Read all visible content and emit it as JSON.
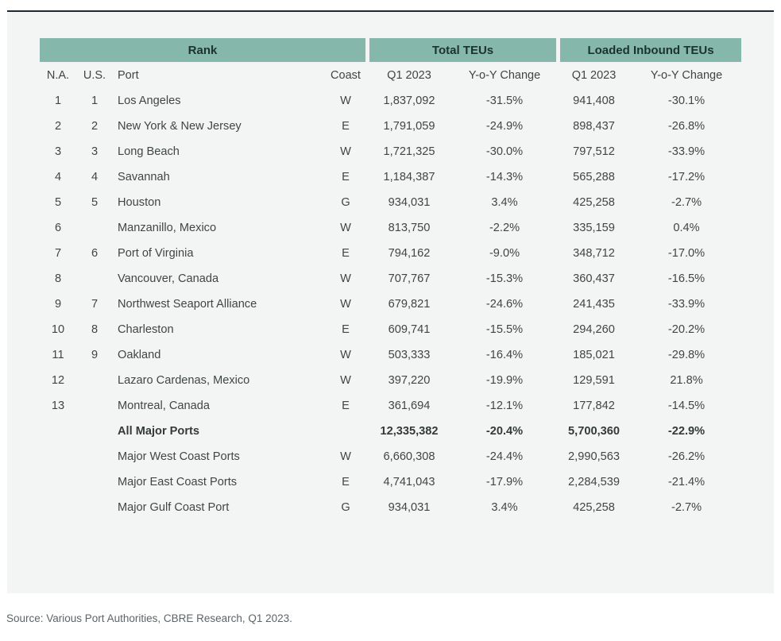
{
  "page": {
    "source_note": "Source: Various Port Authorities, CBRE Research, Q1 2023."
  },
  "colors": {
    "band_background": "#85b8ab",
    "band_text": "#1c332d",
    "top_rule": "#1e2a33",
    "panel_background": "#f3f5f5",
    "body_text": "#3f4643",
    "source_text": "#5c6468"
  },
  "table": {
    "group_headers": [
      {
        "label": "Rank"
      },
      {
        "label": "Total TEUs"
      },
      {
        "label": "Loaded Inbound TEUs"
      }
    ],
    "column_headers": [
      "N.A.",
      "U.S.",
      "Port",
      "Coast",
      "Q1 2023",
      "Y-o-Y Change",
      "Q1 2023",
      "Y-o-Y Change"
    ],
    "rows": [
      {
        "na": "1",
        "us": "1",
        "port": "Los Angeles",
        "coast": "W",
        "q1_total": "1,837,092",
        "yoy_total": "-31.5%",
        "q1_inbound": "941,408",
        "yoy_inbound": "-30.1%",
        "bold": false
      },
      {
        "na": "2",
        "us": "2",
        "port": "New York & New Jersey",
        "coast": "E",
        "q1_total": "1,791,059",
        "yoy_total": "-24.9%",
        "q1_inbound": "898,437",
        "yoy_inbound": "-26.8%",
        "bold": false
      },
      {
        "na": "3",
        "us": "3",
        "port": "Long Beach",
        "coast": "W",
        "q1_total": "1,721,325",
        "yoy_total": "-30.0%",
        "q1_inbound": "797,512",
        "yoy_inbound": "-33.9%",
        "bold": false
      },
      {
        "na": "4",
        "us": "4",
        "port": "Savannah",
        "coast": "E",
        "q1_total": "1,184,387",
        "yoy_total": "-14.3%",
        "q1_inbound": "565,288",
        "yoy_inbound": "-17.2%",
        "bold": false
      },
      {
        "na": "5",
        "us": "5",
        "port": "Houston",
        "coast": "G",
        "q1_total": "934,031",
        "yoy_total": "3.4%",
        "q1_inbound": "425,258",
        "yoy_inbound": "-2.7%",
        "bold": false
      },
      {
        "na": "6",
        "us": "",
        "port": "Manzanillo, Mexico",
        "coast": "W",
        "q1_total": "813,750",
        "yoy_total": "-2.2%",
        "q1_inbound": "335,159",
        "yoy_inbound": "0.4%",
        "bold": false
      },
      {
        "na": "7",
        "us": "6",
        "port": "Port of Virginia",
        "coast": "E",
        "q1_total": "794,162",
        "yoy_total": "-9.0%",
        "q1_inbound": "348,712",
        "yoy_inbound": "-17.0%",
        "bold": false
      },
      {
        "na": "8",
        "us": "",
        "port": "Vancouver, Canada",
        "coast": "W",
        "q1_total": "707,767",
        "yoy_total": "-15.3%",
        "q1_inbound": "360,437",
        "yoy_inbound": "-16.5%",
        "bold": false
      },
      {
        "na": "9",
        "us": "7",
        "port": "Northwest Seaport Alliance",
        "coast": "W",
        "q1_total": "679,821",
        "yoy_total": "-24.6%",
        "q1_inbound": "241,435",
        "yoy_inbound": "-33.9%",
        "bold": false
      },
      {
        "na": "10",
        "us": "8",
        "port": "Charleston",
        "coast": "E",
        "q1_total": "609,741",
        "yoy_total": "-15.5%",
        "q1_inbound": "294,260",
        "yoy_inbound": "-20.2%",
        "bold": false
      },
      {
        "na": "11",
        "us": "9",
        "port": "Oakland",
        "coast": "W",
        "q1_total": "503,333",
        "yoy_total": "-16.4%",
        "q1_inbound": "185,021",
        "yoy_inbound": "-29.8%",
        "bold": false
      },
      {
        "na": "12",
        "us": "",
        "port": "Lazaro Cardenas, Mexico",
        "coast": "W",
        "q1_total": "397,220",
        "yoy_total": "-19.9%",
        "q1_inbound": "129,591",
        "yoy_inbound": "21.8%",
        "bold": false
      },
      {
        "na": "13",
        "us": "",
        "port": "Montreal, Canada",
        "coast": "E",
        "q1_total": "361,694",
        "yoy_total": "-12.1%",
        "q1_inbound": "177,842",
        "yoy_inbound": "-14.5%",
        "bold": false
      },
      {
        "na": "",
        "us": "",
        "port": "All Major Ports",
        "coast": "",
        "q1_total": "12,335,382",
        "yoy_total": "-20.4%",
        "q1_inbound": "5,700,360",
        "yoy_inbound": "-22.9%",
        "bold": true
      },
      {
        "na": "",
        "us": "",
        "port": "Major West Coast Ports",
        "coast": "W",
        "q1_total": "6,660,308",
        "yoy_total": "-24.4%",
        "q1_inbound": "2,990,563",
        "yoy_inbound": "-26.2%",
        "bold": false
      },
      {
        "na": "",
        "us": "",
        "port": "Major East Coast Ports",
        "coast": "E",
        "q1_total": "4,741,043",
        "yoy_total": "-17.9%",
        "q1_inbound": "2,284,539",
        "yoy_inbound": "-21.4%",
        "bold": false
      },
      {
        "na": "",
        "us": "",
        "port": "Major Gulf Coast Port",
        "coast": "G",
        "q1_total": "934,031",
        "yoy_total": "3.4%",
        "q1_inbound": "425,258",
        "yoy_inbound": "-2.7%",
        "bold": false
      }
    ]
  }
}
